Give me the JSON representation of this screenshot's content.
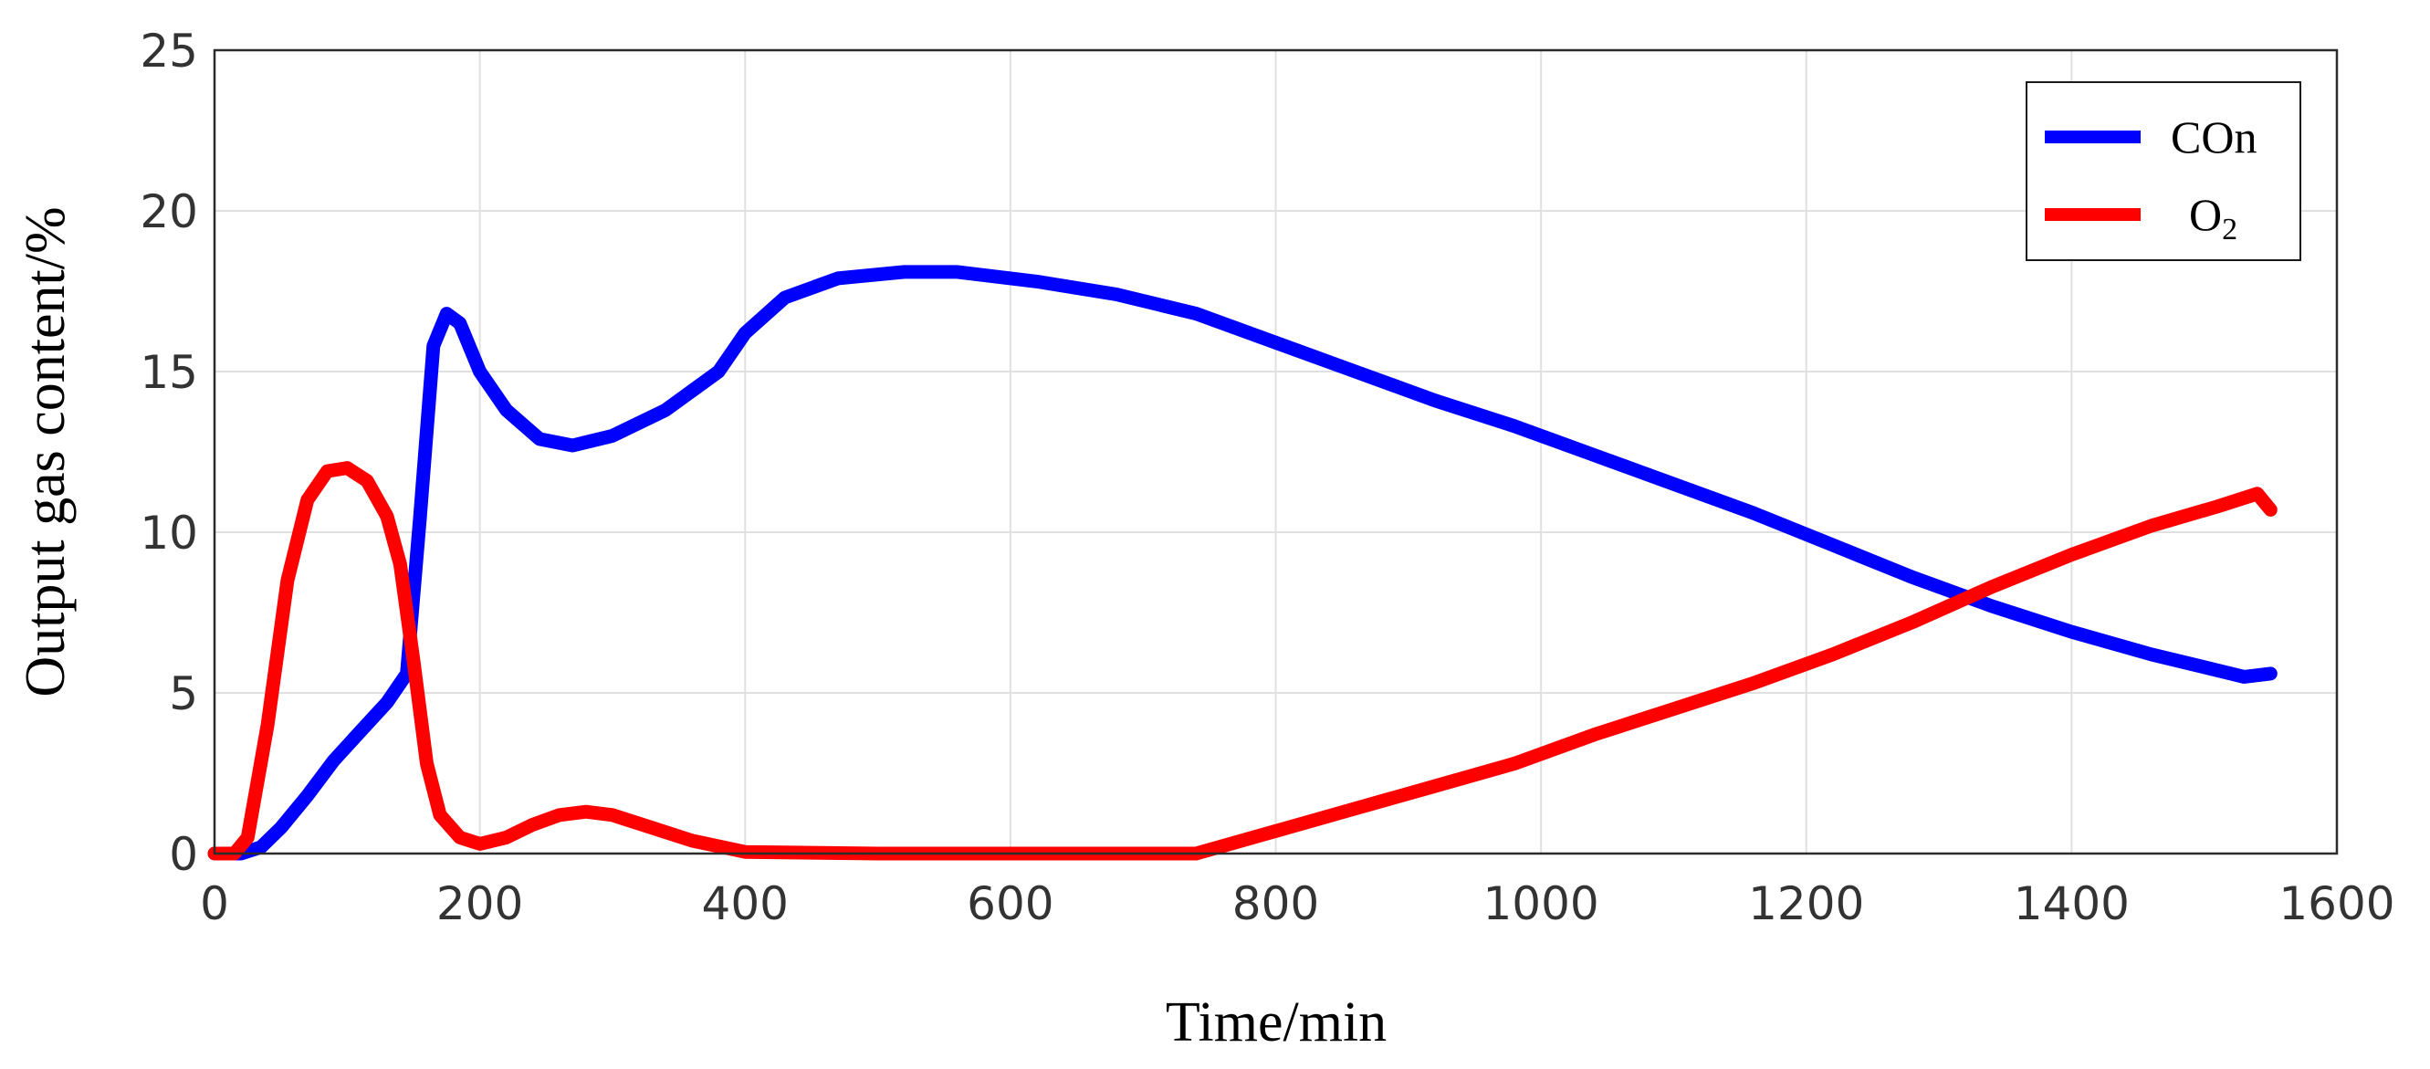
{
  "chart_data": {
    "type": "line",
    "xlabel": "Time/min",
    "ylabel": "Output gas content/%",
    "xlim": [
      0,
      1600
    ],
    "ylim": [
      0,
      25
    ],
    "xticks": [
      0,
      200,
      400,
      600,
      800,
      1000,
      1200,
      1400,
      1600
    ],
    "yticks": [
      0,
      5,
      10,
      15,
      20,
      25
    ],
    "grid": true,
    "legend_position": "top-right",
    "series": [
      {
        "name": "COn",
        "color": "#0000ff",
        "x": [
          0,
          20,
          35,
          50,
          70,
          90,
          110,
          130,
          145,
          155,
          165,
          175,
          185,
          200,
          220,
          245,
          270,
          300,
          340,
          380,
          400,
          430,
          470,
          520,
          560,
          620,
          680,
          740,
          800,
          860,
          920,
          980,
          1040,
          1100,
          1160,
          1220,
          1280,
          1340,
          1400,
          1460,
          1500,
          1530,
          1550
        ],
        "y": [
          0,
          0,
          0.2,
          0.8,
          1.8,
          2.9,
          3.8,
          4.7,
          5.6,
          10.5,
          15.8,
          16.8,
          16.5,
          15.0,
          13.8,
          12.9,
          12.7,
          13.0,
          13.8,
          15.0,
          16.2,
          17.3,
          17.9,
          18.1,
          18.1,
          17.8,
          17.4,
          16.8,
          15.9,
          15.0,
          14.1,
          13.3,
          12.4,
          11.5,
          10.6,
          9.6,
          8.6,
          7.7,
          6.9,
          6.2,
          5.8,
          5.5,
          5.6
        ]
      },
      {
        "name": "O2",
        "color": "#ff0000",
        "x": [
          0,
          15,
          25,
          40,
          55,
          70,
          85,
          100,
          115,
          130,
          140,
          150,
          160,
          170,
          185,
          200,
          220,
          240,
          260,
          280,
          300,
          330,
          360,
          400,
          500,
          600,
          700,
          740,
          800,
          860,
          920,
          980,
          1040,
          1100,
          1160,
          1220,
          1280,
          1340,
          1400,
          1460,
          1510,
          1540,
          1550
        ],
        "y": [
          0,
          0,
          0.5,
          4.0,
          8.5,
          11.0,
          11.9,
          12.0,
          11.6,
          10.5,
          9.0,
          6.0,
          2.8,
          1.2,
          0.5,
          0.3,
          0.5,
          0.9,
          1.2,
          1.3,
          1.2,
          0.8,
          0.4,
          0.05,
          0,
          0,
          0,
          0,
          0.7,
          1.4,
          2.1,
          2.8,
          3.7,
          4.5,
          5.3,
          6.2,
          7.2,
          8.3,
          9.3,
          10.2,
          10.8,
          11.2,
          10.7
        ]
      }
    ]
  },
  "legend": {
    "items": [
      {
        "label": "COn",
        "color": "#0000ff"
      },
      {
        "label": "O",
        "sub": "2",
        "color": "#ff0000"
      }
    ]
  }
}
